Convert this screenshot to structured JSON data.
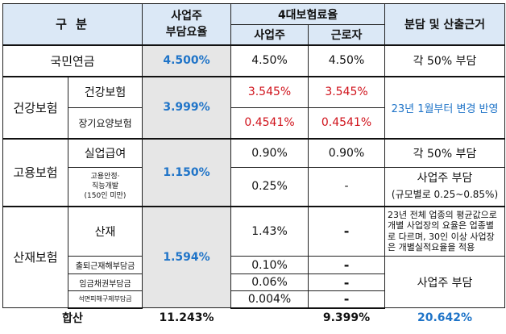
{
  "headers": {
    "category": "구 분",
    "employer_rate_line1": "사업주",
    "employer_rate_line2": "부담요율",
    "four_insurance": "4대보험료율",
    "employer": "사업주",
    "worker": "근로자",
    "basis": "분담 및 산출근거"
  },
  "rows": {
    "pension": {
      "label": "국민연금",
      "employer_total": "4.500%",
      "employer": "4.50%",
      "worker": "4.50%",
      "basis": "각 50% 부담"
    },
    "health": {
      "label": "건강보험",
      "employer_total": "3.999%",
      "basis": "23년 1월부터 변경 반영",
      "sub1": {
        "label": "건강보험",
        "employer": "3.545%",
        "worker": "3.545%"
      },
      "sub2": {
        "label": "장기요양보험",
        "employer": "0.4541%",
        "worker": "0.4541%"
      }
    },
    "employment": {
      "label": "고용보험",
      "employer_total": "1.150%",
      "sub1": {
        "label": "실업급여",
        "employer": "0.90%",
        "worker": "0.90%",
        "basis": "각 50% 부담"
      },
      "sub2": {
        "label_l1": "고용안정·",
        "label_l2": "직능개발",
        "label_l3": "(150인 미만)",
        "employer": "0.25%",
        "worker": "-",
        "basis_l1": "사업주 부담",
        "basis_l2": "(규모별로 0.25~0.85%)"
      }
    },
    "industrial": {
      "label": "산재보험",
      "employer_total": "1.594%",
      "sub1": {
        "label": "산재",
        "employer": "1.43%",
        "worker": "-",
        "basis": "23년 전체 업종의 평균값으로 개별 사업장의 요율은 업종별로 다르며, 30인 이상 사업장은 개별실적요율을 적용"
      },
      "sub2": {
        "label": "출퇴근재해부담금",
        "employer": "0.10%",
        "worker": "-"
      },
      "sub3": {
        "label": "임금채권부담금",
        "employer": "0.06%",
        "worker": "-"
      },
      "sub4": {
        "label": "석면피해구제부담금",
        "employer": "0.004%",
        "worker": "-"
      },
      "basis2": "사업주 부담"
    }
  },
  "total": {
    "label": "합산",
    "employer_total": "11.243%",
    "worker": "9.399%",
    "combined": "20.642%"
  },
  "colors": {
    "header_bg": "#dbe8f6",
    "accent_blue": "#1f74c8",
    "red": "#d0121b",
    "gray": "#e6e6e6"
  }
}
